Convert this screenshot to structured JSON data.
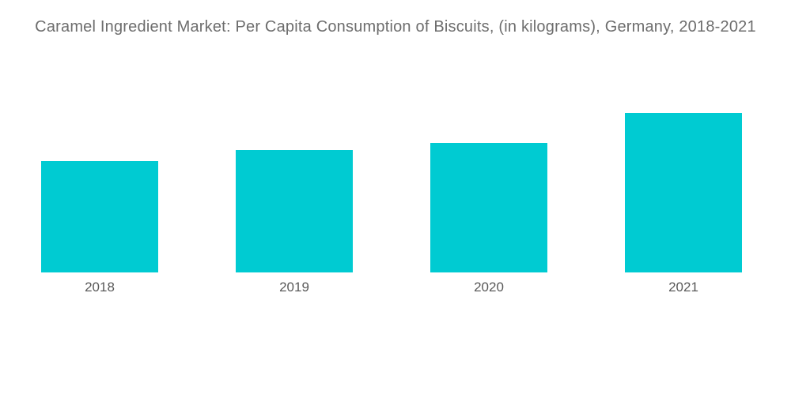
{
  "page": {
    "background": "#ffffff"
  },
  "chart_data": {
    "type": "bar",
    "title": "Caramel Ingredient Market: Per Capita Consumption of Biscuits, (in kilograms), Germany, 2018-2021",
    "categories": [
      "2018",
      "2019",
      "2020",
      "2021"
    ],
    "values": [
      141,
      155,
      164,
      202
    ],
    "ylim": [
      0,
      280
    ],
    "xlabel": "",
    "ylabel": "",
    "grid": false,
    "legend_position": "none",
    "axes_visible": false,
    "data_labels_visible": false,
    "values_note": "No axis ticks, gridlines or data labels are shown in the image; values are relative bar heights measured in pixels from the screenshot (baseline y=376).",
    "colors": {
      "bar": "#00CBD2",
      "title_text": "#6d6d6d",
      "axis_label_text": "#595959",
      "background": "#ffffff"
    }
  }
}
